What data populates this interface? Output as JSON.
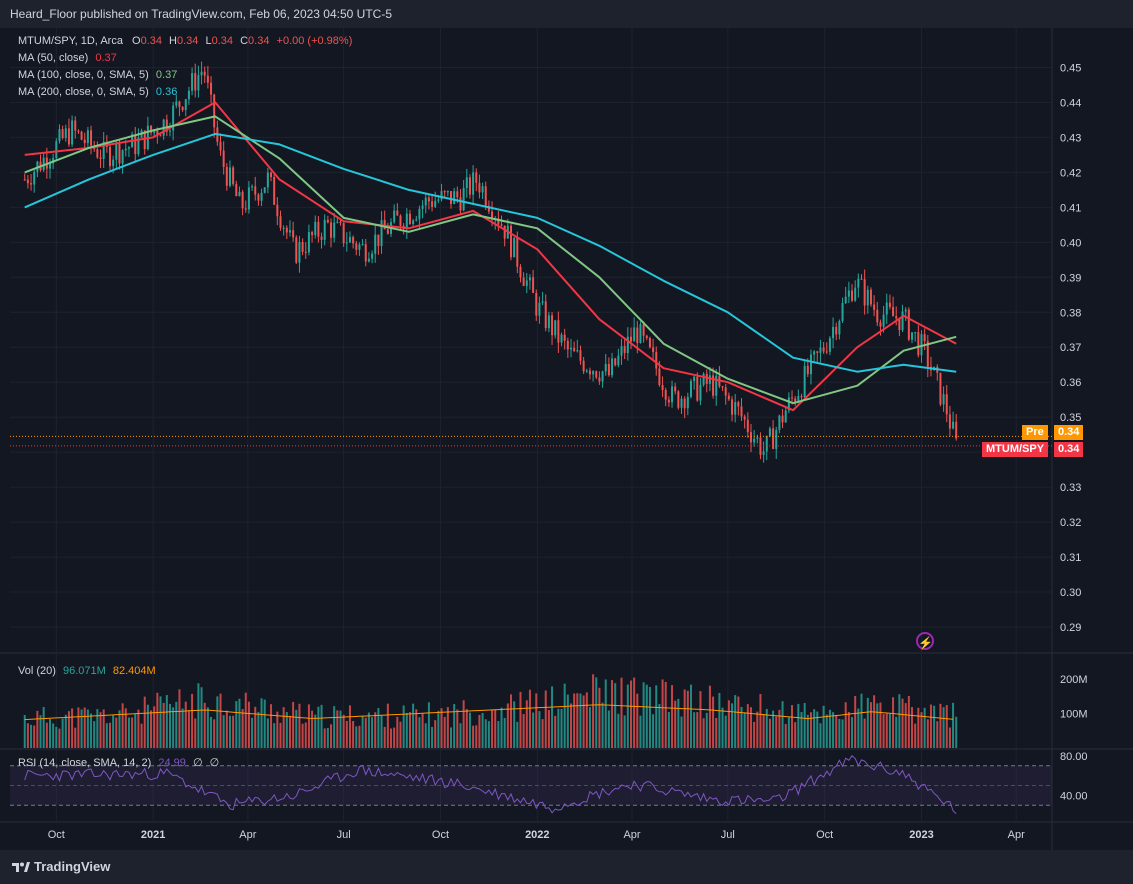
{
  "header": {
    "publisher_text": "Heard_Floor published on TradingView.com, Feb 06, 2023 04:50 UTC-5"
  },
  "footer": {
    "brand": "TradingView",
    "brand_icon": "tradingview-logo-icon"
  },
  "legend": {
    "symbol": "MTUM/SPY, 1D, Arca",
    "o_label": "O",
    "o": "0.34",
    "h_label": "H",
    "h": "0.34",
    "l_label": "L",
    "l": "0.34",
    "c_label": "C",
    "c": "0.34",
    "change": "+0.00 (+0.98%)",
    "ma50_label": "MA (50, close)",
    "ma50_value": "0.37",
    "ma100_label": "MA (100, close, 0, SMA, 5)",
    "ma100_value": "0.37",
    "ma200_label": "MA (200, close, 0, SMA, 5)",
    "ma200_value": "0.36",
    "vol_label": "Vol (20)",
    "vol_value": "96.071M",
    "vol_ma_value": "82.404M",
    "rsi_label": "RSI (14, close, SMA, 14, 2)",
    "rsi_value": "24.99",
    "rsi_extra1": "∅",
    "rsi_extra2": "∅"
  },
  "price_tags": {
    "pre_label": "Pre",
    "pre_value": "0.34",
    "last_label": "MTUM/SPY",
    "last_value": "0.34"
  },
  "colors": {
    "background": "#131722",
    "up": "#26a69a",
    "down": "#ef5350",
    "ma50": "#f23645",
    "ma100": "#81c784",
    "ma200": "#26c6da",
    "vol_ma": "#ff9800",
    "rsi": "#7e57c2",
    "pre": "#ff9800",
    "last": "#f23645"
  },
  "chart_data": [
    {
      "type": "candlestick",
      "title": "MTUM/SPY, 1D, Arca",
      "x_tick_labels": [
        "Oct",
        "2021",
        "Apr",
        "Jul",
        "Oct",
        "2022",
        "Apr",
        "Jul",
        "Oct",
        "2023",
        "Apr"
      ],
      "y_tick_labels": [
        "0.45",
        "0.44",
        "0.43",
        "0.42",
        "0.41",
        "0.40",
        "0.39",
        "0.38",
        "0.37",
        "0.36",
        "0.35",
        "0.34",
        "0.33",
        "0.32",
        "0.31",
        "0.30",
        "0.29"
      ],
      "ylim": [
        0.284,
        0.459
      ],
      "close_series": [
        {
          "date": "2020-09-01",
          "value": 0.418
        },
        {
          "date": "2020-10-15",
          "value": 0.432
        },
        {
          "date": "2020-11-15",
          "value": 0.425
        },
        {
          "date": "2020-12-15",
          "value": 0.428
        },
        {
          "date": "2021-01-15",
          "value": 0.435
        },
        {
          "date": "2021-02-18",
          "value": 0.45
        },
        {
          "date": "2021-03-05",
          "value": 0.425
        },
        {
          "date": "2021-03-25",
          "value": 0.41
        },
        {
          "date": "2021-04-20",
          "value": 0.418
        },
        {
          "date": "2021-05-15",
          "value": 0.397
        },
        {
          "date": "2021-06-15",
          "value": 0.405
        },
        {
          "date": "2021-07-20",
          "value": 0.398
        },
        {
          "date": "2021-08-20",
          "value": 0.406
        },
        {
          "date": "2021-09-20",
          "value": 0.412
        },
        {
          "date": "2021-10-20",
          "value": 0.413
        },
        {
          "date": "2021-11-05",
          "value": 0.418
        },
        {
          "date": "2021-12-01",
          "value": 0.404
        },
        {
          "date": "2021-12-31",
          "value": 0.382
        },
        {
          "date": "2022-02-01",
          "value": 0.368
        },
        {
          "date": "2022-03-10",
          "value": 0.362
        },
        {
          "date": "2022-04-05",
          "value": 0.375
        },
        {
          "date": "2022-05-10",
          "value": 0.355
        },
        {
          "date": "2022-06-15",
          "value": 0.36
        },
        {
          "date": "2022-07-10",
          "value": 0.352
        },
        {
          "date": "2022-08-05",
          "value": 0.34
        },
        {
          "date": "2022-08-25",
          "value": 0.352
        },
        {
          "date": "2022-09-30",
          "value": 0.37
        },
        {
          "date": "2022-10-30",
          "value": 0.389
        },
        {
          "date": "2022-11-20",
          "value": 0.38
        },
        {
          "date": "2022-12-15",
          "value": 0.378
        },
        {
          "date": "2023-01-05",
          "value": 0.368
        },
        {
          "date": "2023-01-25",
          "value": 0.352
        },
        {
          "date": "2023-02-03",
          "value": 0.342
        }
      ],
      "ma_series": [
        {
          "name": "MA (50, close)",
          "points": [
            {
              "date": "2020-09-01",
              "value": 0.425
            },
            {
              "date": "2020-11-01",
              "value": 0.427
            },
            {
              "date": "2021-01-01",
              "value": 0.43
            },
            {
              "date": "2021-03-01",
              "value": 0.44
            },
            {
              "date": "2021-05-01",
              "value": 0.418
            },
            {
              "date": "2021-07-01",
              "value": 0.406
            },
            {
              "date": "2021-09-01",
              "value": 0.404
            },
            {
              "date": "2021-11-01",
              "value": 0.409
            },
            {
              "date": "2022-01-01",
              "value": 0.398
            },
            {
              "date": "2022-03-01",
              "value": 0.378
            },
            {
              "date": "2022-05-01",
              "value": 0.364
            },
            {
              "date": "2022-07-01",
              "value": 0.36
            },
            {
              "date": "2022-09-01",
              "value": 0.352
            },
            {
              "date": "2022-11-01",
              "value": 0.37
            },
            {
              "date": "2022-12-15",
              "value": 0.379
            },
            {
              "date": "2023-02-03",
              "value": 0.371
            }
          ]
        },
        {
          "name": "MA (100, close, 0, SMA, 5)",
          "points": [
            {
              "date": "2020-09-01",
              "value": 0.42
            },
            {
              "date": "2020-11-01",
              "value": 0.427
            },
            {
              "date": "2021-01-01",
              "value": 0.432
            },
            {
              "date": "2021-03-01",
              "value": 0.436
            },
            {
              "date": "2021-05-01",
              "value": 0.424
            },
            {
              "date": "2021-07-01",
              "value": 0.407
            },
            {
              "date": "2021-09-01",
              "value": 0.403
            },
            {
              "date": "2021-11-01",
              "value": 0.408
            },
            {
              "date": "2022-01-01",
              "value": 0.404
            },
            {
              "date": "2022-03-01",
              "value": 0.39
            },
            {
              "date": "2022-05-01",
              "value": 0.371
            },
            {
              "date": "2022-07-01",
              "value": 0.361
            },
            {
              "date": "2022-09-01",
              "value": 0.354
            },
            {
              "date": "2022-11-01",
              "value": 0.359
            },
            {
              "date": "2022-12-15",
              "value": 0.369
            },
            {
              "date": "2023-02-03",
              "value": 0.373
            }
          ]
        },
        {
          "name": "MA (200, close, 0, SMA, 5)",
          "points": [
            {
              "date": "2020-09-01",
              "value": 0.41
            },
            {
              "date": "2020-11-01",
              "value": 0.418
            },
            {
              "date": "2021-01-01",
              "value": 0.425
            },
            {
              "date": "2021-03-01",
              "value": 0.431
            },
            {
              "date": "2021-05-01",
              "value": 0.428
            },
            {
              "date": "2021-07-01",
              "value": 0.421
            },
            {
              "date": "2021-09-01",
              "value": 0.415
            },
            {
              "date": "2021-11-01",
              "value": 0.411
            },
            {
              "date": "2022-01-01",
              "value": 0.407
            },
            {
              "date": "2022-03-01",
              "value": 0.399
            },
            {
              "date": "2022-05-01",
              "value": 0.389
            },
            {
              "date": "2022-07-01",
              "value": 0.38
            },
            {
              "date": "2022-09-01",
              "value": 0.367
            },
            {
              "date": "2022-11-01",
              "value": 0.363
            },
            {
              "date": "2022-12-15",
              "value": 0.365
            },
            {
              "date": "2023-02-03",
              "value": 0.363
            }
          ]
        }
      ]
    },
    {
      "type": "bar",
      "title": "Vol (20)",
      "y_tick_labels": [
        "200M",
        "100M"
      ],
      "ylim": [
        0,
        260
      ],
      "volume_m_samples": [
        {
          "date": "2020-09-01",
          "value": 85
        },
        {
          "date": "2020-12-01",
          "value": 95
        },
        {
          "date": "2021-02-20",
          "value": 140
        },
        {
          "date": "2021-06-01",
          "value": 90
        },
        {
          "date": "2021-10-01",
          "value": 95
        },
        {
          "date": "2022-01-15",
          "value": 130
        },
        {
          "date": "2022-03-01",
          "value": 160
        },
        {
          "date": "2022-06-15",
          "value": 130
        },
        {
          "date": "2022-09-15",
          "value": 95
        },
        {
          "date": "2022-11-15",
          "value": 120
        },
        {
          "date": "2023-02-03",
          "value": 96
        }
      ],
      "vol_ma_m_samples": [
        {
          "date": "2020-09-01",
          "value": 82
        },
        {
          "date": "2021-02-20",
          "value": 110
        },
        {
          "date": "2021-06-01",
          "value": 85
        },
        {
          "date": "2022-03-01",
          "value": 125
        },
        {
          "date": "2022-06-15",
          "value": 110
        },
        {
          "date": "2022-09-15",
          "value": 85
        },
        {
          "date": "2022-11-15",
          "value": 105
        },
        {
          "date": "2023-02-03",
          "value": 82
        }
      ]
    },
    {
      "type": "line",
      "title": "RSI (14, close, SMA, 14, 2)",
      "y_tick_labels": [
        "80.00",
        "40.00"
      ],
      "ylim": [
        14,
        86
      ],
      "upper_band": 70,
      "lower_band": 30,
      "rsi_samples": [
        {
          "date": "2020-09-01",
          "value": 60
        },
        {
          "date": "2021-01-15",
          "value": 62
        },
        {
          "date": "2021-03-15",
          "value": 30
        },
        {
          "date": "2021-05-15",
          "value": 40
        },
        {
          "date": "2021-07-15",
          "value": 66
        },
        {
          "date": "2021-10-15",
          "value": 52
        },
        {
          "date": "2022-01-15",
          "value": 28
        },
        {
          "date": "2022-04-01",
          "value": 52
        },
        {
          "date": "2022-06-15",
          "value": 36
        },
        {
          "date": "2022-08-15",
          "value": 34
        },
        {
          "date": "2022-10-25",
          "value": 76
        },
        {
          "date": "2022-12-15",
          "value": 62
        },
        {
          "date": "2023-02-03",
          "value": 25
        }
      ]
    }
  ]
}
